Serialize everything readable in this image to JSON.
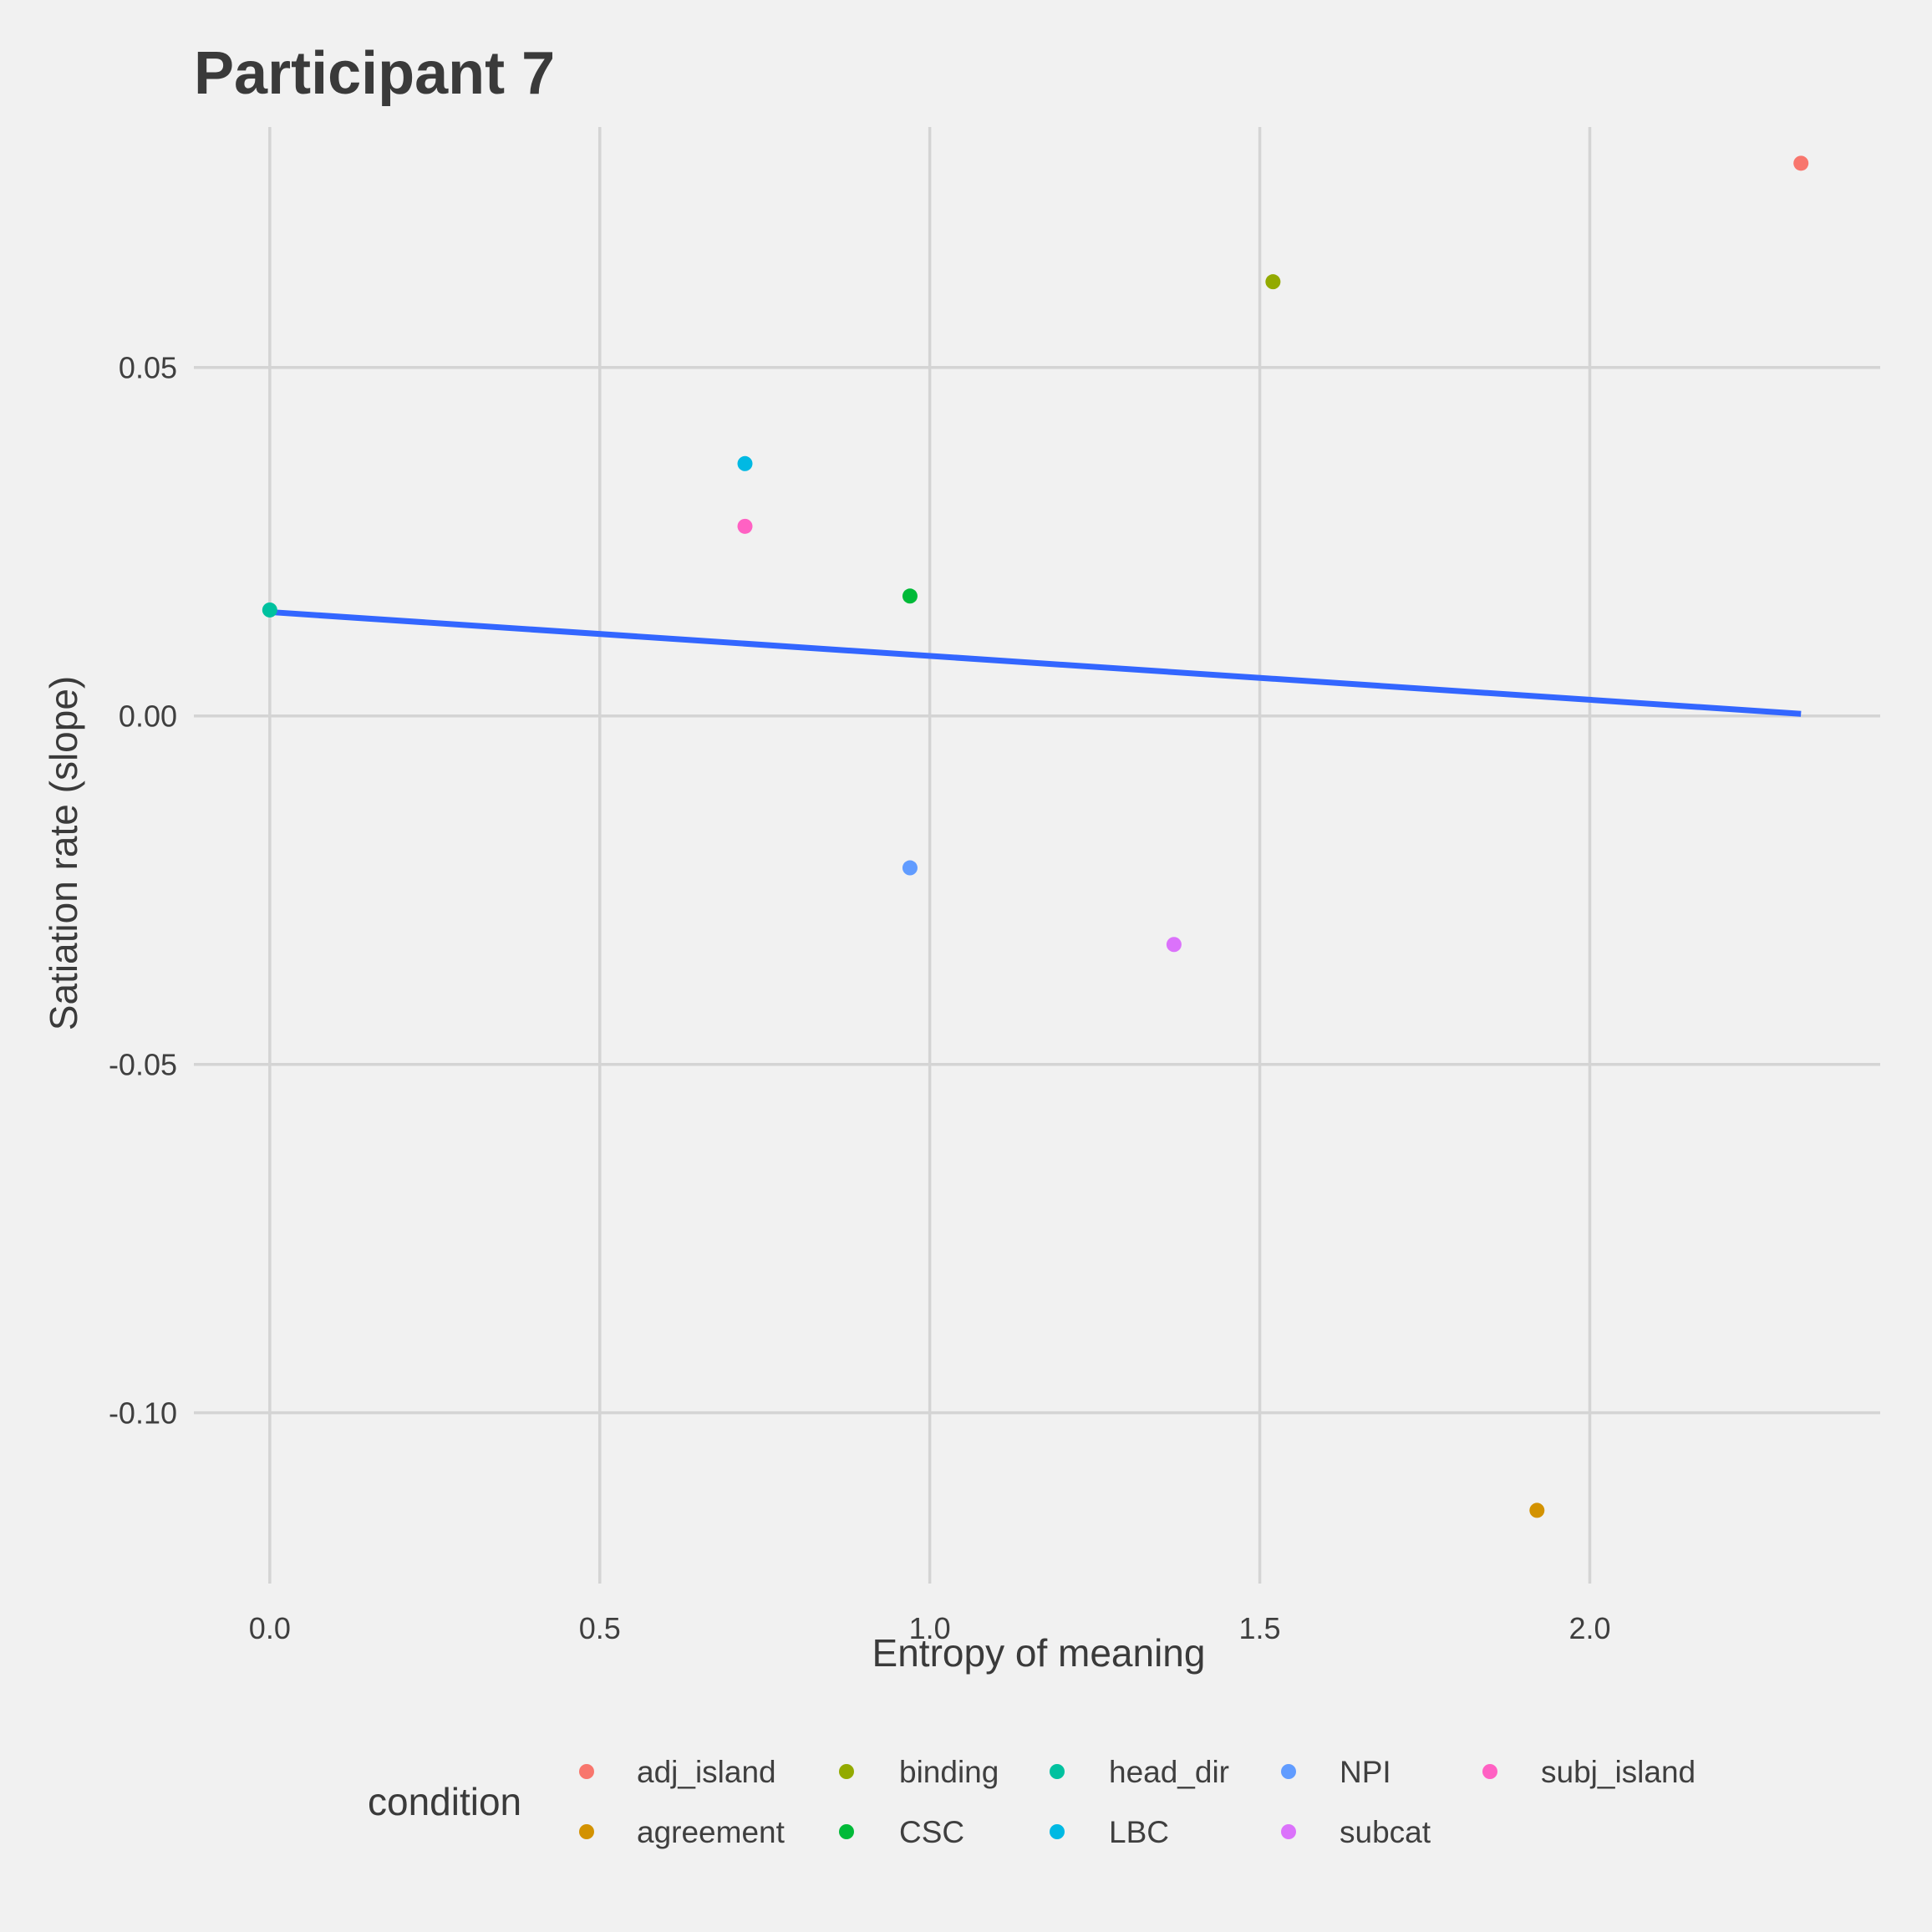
{
  "chart_data": {
    "type": "scatter",
    "title": "Participant 7",
    "xlabel": "Entropy of meaning",
    "ylabel": "Satiation rate (slope)",
    "xlim": [
      -0.115,
      2.44
    ],
    "ylim": [
      -0.1245,
      0.0845
    ],
    "x_ticks": [
      0.0,
      0.5,
      1.0,
      1.5,
      2.0
    ],
    "x_tick_labels": [
      "0.0",
      "0.5",
      "1.0",
      "1.5",
      "2.0"
    ],
    "y_ticks": [
      0.05,
      0.0,
      -0.05,
      -0.1
    ],
    "y_tick_labels": [
      "0.05",
      "0.00",
      "-0.05",
      "-0.10"
    ],
    "grid": true,
    "legend": {
      "title": "condition",
      "placement": "bottom"
    },
    "series": [
      {
        "name": "adj_island",
        "color": "#F8766D",
        "points": [
          {
            "x": 2.32,
            "y": 0.0793
          }
        ]
      },
      {
        "name": "agreement",
        "color": "#D39200",
        "points": [
          {
            "x": 1.92,
            "y": -0.114
          }
        ]
      },
      {
        "name": "binding",
        "color": "#93AA00",
        "points": [
          {
            "x": 1.52,
            "y": 0.0623
          }
        ]
      },
      {
        "name": "CSC",
        "color": "#00BA38",
        "points": [
          {
            "x": 0.97,
            "y": 0.0172
          }
        ]
      },
      {
        "name": "head_dir",
        "color": "#00C19F",
        "points": [
          {
            "x": 0.0,
            "y": 0.0152
          }
        ]
      },
      {
        "name": "LBC",
        "color": "#00B9E3",
        "points": [
          {
            "x": 0.72,
            "y": 0.0362
          }
        ]
      },
      {
        "name": "NPI",
        "color": "#619CFF",
        "points": [
          {
            "x": 0.97,
            "y": -0.0218
          }
        ]
      },
      {
        "name": "subcat",
        "color": "#DB72FB",
        "points": [
          {
            "x": 1.37,
            "y": -0.0328
          }
        ]
      },
      {
        "name": "subj_island",
        "color": "#FF61C3",
        "points": [
          {
            "x": 0.72,
            "y": 0.0272
          }
        ]
      }
    ],
    "trend_line": {
      "color": "#3366FF",
      "x": [
        0.0,
        2.32
      ],
      "y": [
        0.0149,
        0.0003
      ]
    }
  }
}
